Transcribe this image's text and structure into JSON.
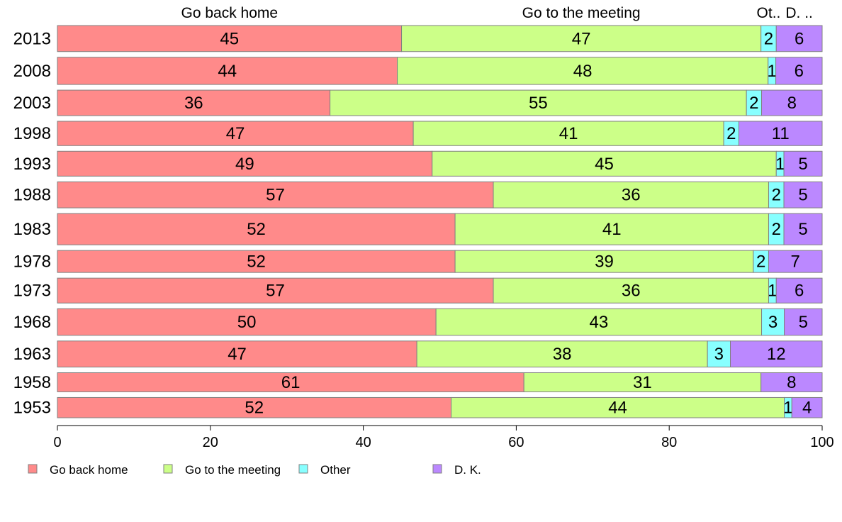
{
  "chart_data": {
    "type": "bar",
    "orientation": "horizontal",
    "stacked": true,
    "categories": [
      "2013",
      "2008",
      "2003",
      "1998",
      "1993",
      "1988",
      "1983",
      "1978",
      "1973",
      "1968",
      "1963",
      "1958",
      "1953"
    ],
    "row_weights": [
      45,
      47,
      44,
      42,
      43,
      45,
      54,
      38,
      43,
      46,
      45,
      33,
      35
    ],
    "series": [
      {
        "name": "Go back home",
        "color": "#ff8a8a",
        "values": [
          45,
          44,
          36,
          47,
          49,
          57,
          52,
          52,
          57,
          50,
          47,
          61,
          52
        ]
      },
      {
        "name": "Go to the meeting",
        "color": "#ccff88",
        "values": [
          47,
          48,
          55,
          41,
          45,
          36,
          41,
          39,
          36,
          43,
          38,
          31,
          44
        ]
      },
      {
        "name": "Other",
        "color": "#88ffff",
        "values": [
          2,
          1,
          2,
          2,
          1,
          2,
          2,
          2,
          1,
          3,
          3,
          0,
          1
        ]
      },
      {
        "name": "D. K.",
        "color": "#bb88ff",
        "values": [
          6,
          6,
          8,
          11,
          5,
          5,
          5,
          7,
          6,
          5,
          12,
          8,
          4
        ]
      }
    ],
    "top_labels": [
      "Go back home",
      "Go to the meeting",
      "Ot..",
      "D. .."
    ],
    "legend_labels": [
      "Go back home",
      "Go to the meeting",
      "Other",
      "D. K."
    ],
    "xlim": [
      0,
      100
    ],
    "xticks": [
      0,
      20,
      40,
      60,
      80,
      100
    ],
    "legend_position": "bottom-left",
    "grid": false
  }
}
